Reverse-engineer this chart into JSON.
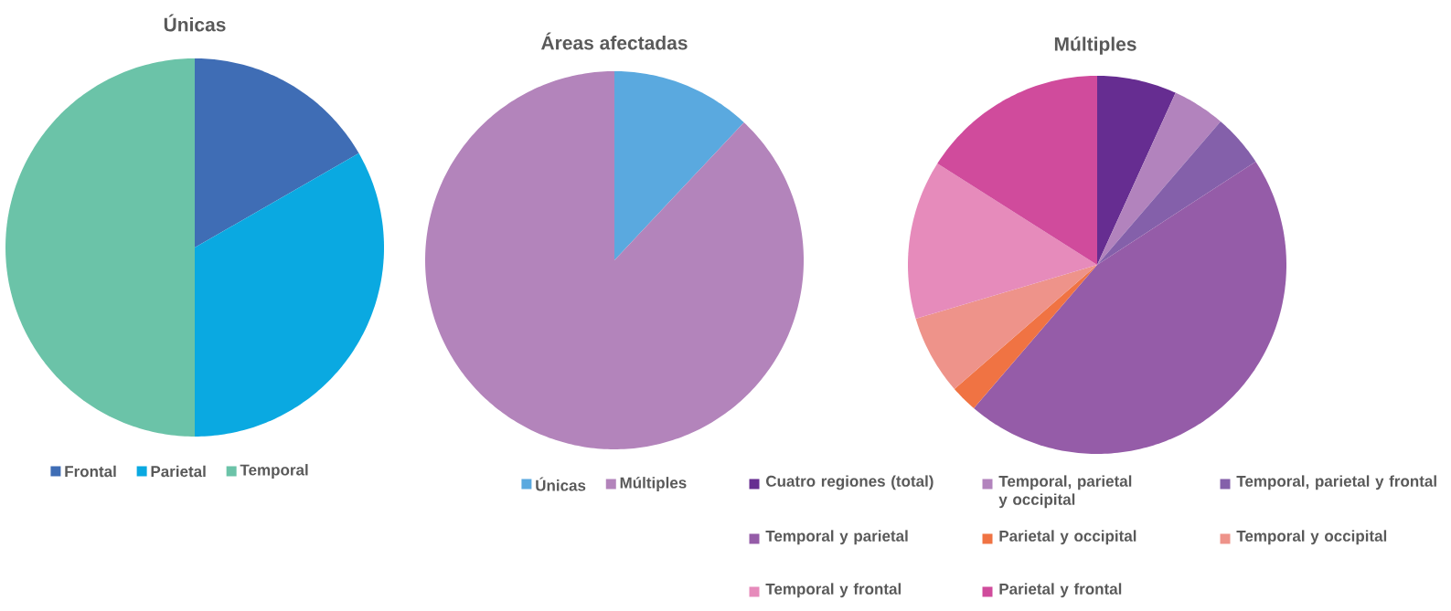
{
  "chart_data": [
    {
      "type": "pie",
      "title": "Únicas",
      "categories": [
        "Frontal",
        "Parietal",
        "Temporal"
      ],
      "values": [
        16.7,
        33.3,
        50.0
      ],
      "colors": [
        "#3f6db5",
        "#0aa9e1",
        "#6bc3a8"
      ],
      "legend": "bottom"
    },
    {
      "type": "pie",
      "title": "Áreas afectadas",
      "categories": [
        "Únicas",
        "Múltiples"
      ],
      "values": [
        12,
        88
      ],
      "colors": [
        "#5aa9df",
        "#b384bb"
      ],
      "legend": "bottom"
    },
    {
      "type": "pie",
      "title": "Múltiples",
      "categories": [
        "Cuatro regiones (total)",
        "Temporal, parietal y occipital",
        "Temporal, parietal y frontal",
        "Temporal y parietal",
        "Parietal y occipital",
        "Temporal y occipital",
        "Temporal y frontal",
        "Parietal y frontal"
      ],
      "values": [
        6.8,
        4.5,
        4.5,
        45.5,
        2.3,
        6.8,
        13.6,
        16.0
      ],
      "colors": [
        "#662d91",
        "#b283bd",
        "#8460aa",
        "#955ca8",
        "#f07343",
        "#ee938a",
        "#e68bbb",
        "#d04b9c"
      ],
      "legend": "bottom"
    }
  ]
}
